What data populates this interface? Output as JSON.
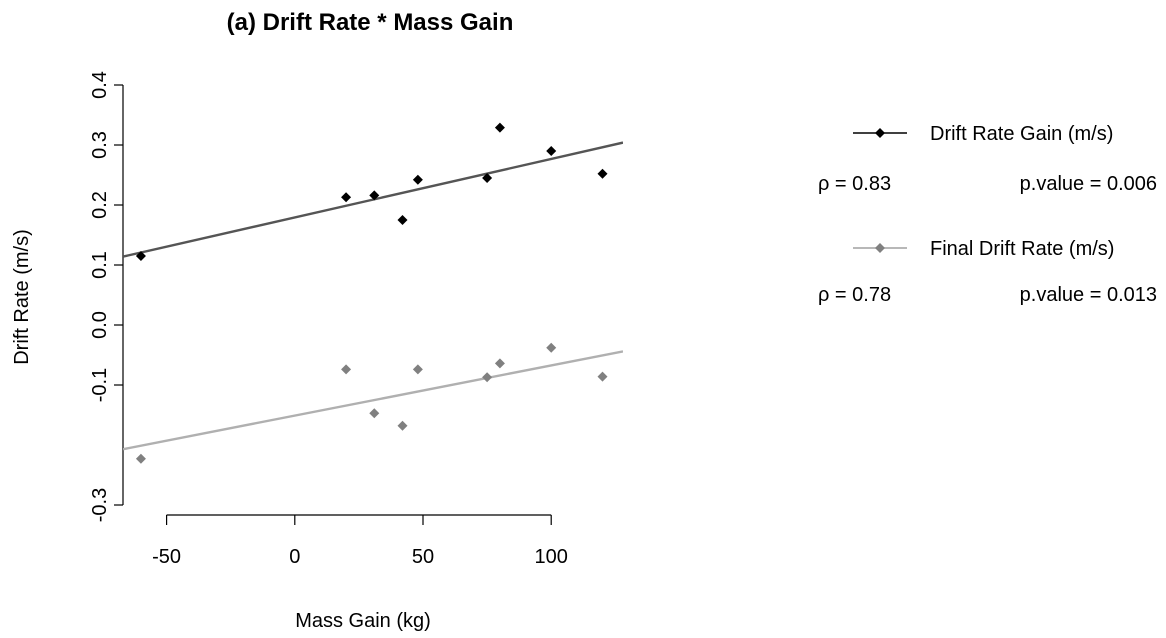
{
  "chart_data": {
    "type": "scatter",
    "title": "(a) Drift Rate * Mass Gain",
    "xlabel": "Mass Gain (kg)",
    "ylabel": "Drift Rate (m/s)",
    "xlim": [
      -67,
      128
    ],
    "ylim": [
      -0.3,
      0.4
    ],
    "x_ticks": [
      -50,
      0,
      50,
      100
    ],
    "x_tick_labels": [
      "-50",
      "0",
      "50",
      "100"
    ],
    "y_ticks": [
      -0.3,
      -0.1,
      0.0,
      0.1,
      0.2,
      0.3,
      0.4
    ],
    "y_tick_labels": [
      "-0.3",
      "-0.1",
      "0.0",
      "0.1",
      "0.2",
      "0.3",
      "0.4"
    ],
    "grid": false,
    "legend_position": "right",
    "series": [
      {
        "name": "Drift Rate Gain (m/s)",
        "color": "#000000",
        "line_color": "#555555",
        "points": [
          {
            "x": -60,
            "y": 0.115
          },
          {
            "x": 20,
            "y": 0.213
          },
          {
            "x": 31,
            "y": 0.216
          },
          {
            "x": 42,
            "y": 0.175
          },
          {
            "x": 48,
            "y": 0.242
          },
          {
            "x": 75,
            "y": 0.245
          },
          {
            "x": 80,
            "y": 0.329
          },
          {
            "x": 100,
            "y": 0.29
          },
          {
            "x": 120,
            "y": 0.252
          }
        ],
        "fit": {
          "x": [
            -67,
            128
          ],
          "y": [
            0.114,
            0.304
          ]
        },
        "rho_label": "ρ = 0.83",
        "p_label": "p.value = 0.006"
      },
      {
        "name": "Final Drift Rate (m/s)",
        "color": "#808080",
        "line_color": "#b0b0b0",
        "points": [
          {
            "x": -60,
            "y": -0.223
          },
          {
            "x": 20,
            "y": -0.074
          },
          {
            "x": 31,
            "y": -0.147
          },
          {
            "x": 42,
            "y": -0.168
          },
          {
            "x": 48,
            "y": -0.074
          },
          {
            "x": 75,
            "y": -0.087
          },
          {
            "x": 80,
            "y": -0.064
          },
          {
            "x": 100,
            "y": -0.038
          },
          {
            "x": 120,
            "y": -0.086
          }
        ],
        "fit": {
          "x": [
            -67,
            128
          ],
          "y": [
            -0.207,
            -0.044
          ]
        },
        "rho_label": "ρ = 0.78",
        "p_label": "p.value = 0.013"
      }
    ]
  }
}
